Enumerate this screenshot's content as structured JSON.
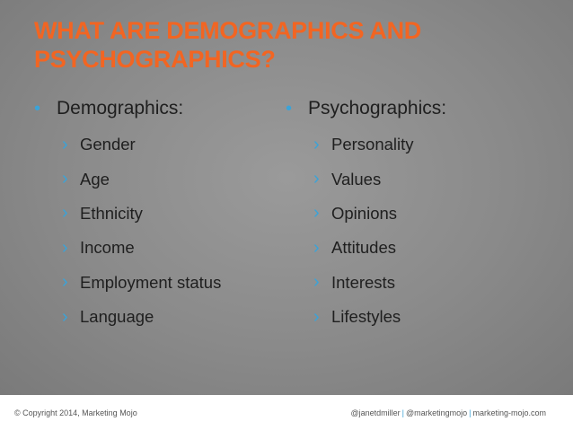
{
  "slide": {
    "title_line1": "WHAT ARE DEMOGRAPHICS AND",
    "title_line2": "PSYCHOGRAPHICS?",
    "left": {
      "heading": "Demographics:",
      "items": [
        "Gender",
        "Age",
        "Ethnicity",
        "Income",
        "Employment status",
        "Language"
      ]
    },
    "right": {
      "heading": "Psychographics:",
      "items": [
        "Personality",
        "Values",
        "Opinions",
        "Attitudes",
        "Interests",
        "Lifestyles"
      ]
    },
    "bullet_glyph": "•",
    "chevron_glyph": "›"
  },
  "footer": {
    "copyright": "© Copyright 2014, Marketing Mojo",
    "credit_1": "@janetdmiller",
    "credit_2": "@marketingmojo",
    "credit_3": "marketing-mojo.com",
    "separator": "|"
  },
  "colors": {
    "title": "#f26522",
    "accent": "#3ba3d8",
    "text": "#1f1f1f",
    "background": "#8a8a8a"
  }
}
